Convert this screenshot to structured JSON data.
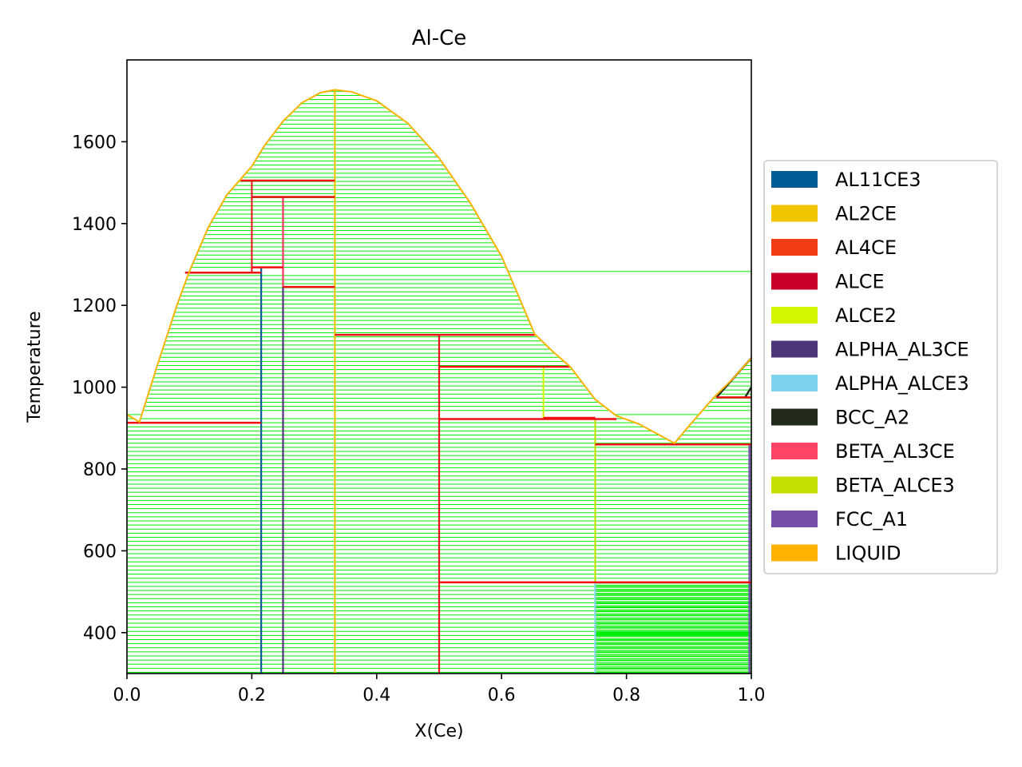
{
  "chart_data": {
    "type": "phase-diagram",
    "title": "Al-Ce",
    "xlabel": "X(Ce)",
    "ylabel": "Temperature",
    "xlim": [
      0.0,
      1.0
    ],
    "ylim": [
      300,
      1800
    ],
    "xticks": [
      "0.0",
      "0.2",
      "0.4",
      "0.6",
      "0.8",
      "1.0"
    ],
    "xtick_values": [
      0.0,
      0.2,
      0.4,
      0.6,
      0.8,
      1.0
    ],
    "yticks": [
      "400",
      "600",
      "800",
      "1000",
      "1200",
      "1400",
      "1600"
    ],
    "ytick_values": [
      400,
      600,
      800,
      1000,
      1200,
      1400,
      1600
    ],
    "tie_line_color": "#00ee00",
    "invariant_color": "#ee1111",
    "legend_position": "center-right",
    "legend": [
      {
        "label": "AL11CE3",
        "color": "#005b96"
      },
      {
        "label": "AL2CE",
        "color": "#f2c500"
      },
      {
        "label": "AL4CE",
        "color": "#f23d16"
      },
      {
        "label": "ALCE",
        "color": "#c8002a"
      },
      {
        "label": "ALCE2",
        "color": "#d4f500"
      },
      {
        "label": "ALPHA_AL3CE",
        "color": "#4f3579"
      },
      {
        "label": "ALPHA_ALCE3",
        "color": "#7dd3ec"
      },
      {
        "label": "BCC_A2",
        "color": "#222b1b"
      },
      {
        "label": "BETA_AL3CE",
        "color": "#ff4466"
      },
      {
        "label": "BETA_ALCE3",
        "color": "#c5e000"
      },
      {
        "label": "FCC_A1",
        "color": "#744ea8"
      },
      {
        "label": "LIQUID",
        "color": "#ffb300"
      }
    ],
    "liquidus": [
      [
        0.0,
        933
      ],
      [
        0.02,
        915
      ],
      [
        0.05,
        1060
      ],
      [
        0.08,
        1200
      ],
      [
        0.1,
        1283
      ],
      [
        0.13,
        1390
      ],
      [
        0.16,
        1470
      ],
      [
        0.18,
        1505
      ],
      [
        0.2,
        1540
      ],
      [
        0.22,
        1590
      ],
      [
        0.25,
        1650
      ],
      [
        0.28,
        1695
      ],
      [
        0.31,
        1720
      ],
      [
        0.333,
        1727
      ],
      [
        0.36,
        1722
      ],
      [
        0.4,
        1700
      ],
      [
        0.45,
        1645
      ],
      [
        0.5,
        1560
      ],
      [
        0.55,
        1450
      ],
      [
        0.6,
        1320
      ],
      [
        0.653,
        1130
      ],
      [
        0.68,
        1090
      ],
      [
        0.71,
        1050
      ],
      [
        0.75,
        970
      ],
      [
        0.784,
        930
      ],
      [
        0.82,
        910
      ],
      [
        0.877,
        863
      ],
      [
        0.9,
        905
      ],
      [
        0.94,
        975
      ],
      [
        0.97,
        1020
      ],
      [
        1.0,
        1071
      ]
    ],
    "invariants": [
      {
        "x1": 0.0,
        "x2": 0.215,
        "t": 913
      },
      {
        "x1": 0.093,
        "x2": 0.215,
        "t": 1280
      },
      {
        "x1": 0.182,
        "x2": 0.333,
        "t": 1505
      },
      {
        "x1": 0.2,
        "x2": 0.333,
        "t": 1465
      },
      {
        "x1": 0.2,
        "x2": 0.25,
        "t": 1293
      },
      {
        "x1": 0.25,
        "x2": 0.333,
        "t": 1245
      },
      {
        "x1": 0.333,
        "x2": 0.653,
        "t": 1128
      },
      {
        "x1": 0.5,
        "x2": 0.71,
        "t": 1050
      },
      {
        "x1": 0.5,
        "x2": 0.784,
        "t": 922
      },
      {
        "x1": 0.667,
        "x2": 0.75,
        "t": 925
      },
      {
        "x1": 0.75,
        "x2": 1.0,
        "t": 860
      },
      {
        "x1": 0.5,
        "x2": 1.0,
        "t": 523
      },
      {
        "x1": 0.944,
        "x2": 1.0,
        "t": 975
      }
    ],
    "phase_boundaries": [
      {
        "x": 0.215,
        "t1": 300,
        "t2": 1293,
        "phase": "AL11CE3"
      },
      {
        "x": 0.25,
        "t1": 300,
        "t2": 1465,
        "phase": "ALPHA_AL3CE"
      },
      {
        "x": 0.25,
        "t1": 1245,
        "t2": 1465,
        "phase": "BETA_AL3CE"
      },
      {
        "x": 0.333,
        "t1": 300,
        "t2": 1727,
        "phase": "AL2CE"
      },
      {
        "x": 0.5,
        "t1": 300,
        "t2": 1128,
        "phase": "ALCE"
      },
      {
        "x": 0.667,
        "t1": 925,
        "t2": 1050,
        "phase": "ALCE2"
      },
      {
        "x": 0.75,
        "t1": 300,
        "t2": 523,
        "phase": "ALPHA_ALCE3"
      },
      {
        "x": 0.75,
        "t1": 523,
        "t2": 922,
        "phase": "BETA_ALCE3"
      }
    ],
    "bcc_boundary": [
      [
        0.944,
        975
      ],
      [
        1.0,
        1071
      ]
    ],
    "bcc_boundary2": [
      [
        0.99,
        975
      ],
      [
        1.0,
        1000
      ]
    ],
    "fcc_boundary": [
      [
        0.997,
        300
      ],
      [
        0.997,
        860
      ]
    ],
    "tie_line_spacing": 10,
    "dense_region": {
      "x1": 0.75,
      "x2": 1.0,
      "t1": 300,
      "t2": 523
    }
  }
}
